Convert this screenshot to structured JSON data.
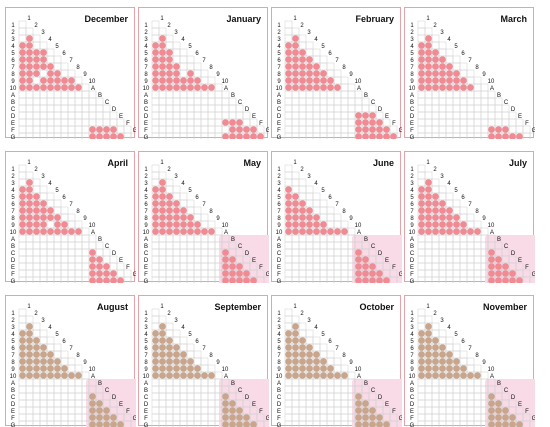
{
  "colors": {
    "pink": "#f28a93",
    "tan": "#c9a58c",
    "shade": "#f8dbe7",
    "grid": "#cfcfcf",
    "border": "#e3a3a8"
  },
  "chart_data": {
    "type": "heatmap",
    "row_labels": [
      "1",
      "2",
      "3",
      "4",
      "5",
      "6",
      "7",
      "8",
      "9",
      "10",
      "A",
      "B",
      "C",
      "D",
      "E",
      "F",
      "G"
    ],
    "col_labels": [
      "1",
      "2",
      "3",
      "4",
      "5",
      "6",
      "7",
      "8",
      "9",
      "10",
      "A",
      "B",
      "C",
      "D",
      "E",
      "F",
      "G"
    ],
    "panels": [
      {
        "month": "December",
        "shade": false,
        "color": "pink",
        "upper": [
          [
            2
          ],
          [
            1,
            2
          ],
          [
            1,
            2,
            3,
            4
          ],
          [
            1,
            2,
            3,
            4
          ],
          [
            1,
            2,
            3,
            4,
            5
          ],
          [
            1,
            2,
            3,
            5,
            6
          ],
          [
            1,
            2,
            4,
            5,
            6,
            7,
            8
          ],
          [
            1,
            2,
            3,
            4,
            5,
            6,
            7,
            8,
            9
          ]
        ],
        "lower": [
          [
            1,
            2,
            3,
            4
          ],
          [
            1,
            2,
            3,
            4,
            5
          ]
        ]
      },
      {
        "month": "January",
        "shade": false,
        "color": "pink",
        "upper": [
          [
            2
          ],
          [
            1,
            2
          ],
          [
            1,
            2,
            3
          ],
          [
            1,
            2,
            3
          ],
          [
            1,
            2,
            3,
            4
          ],
          [
            1,
            2,
            3,
            4,
            6
          ],
          [
            1,
            2,
            3,
            4,
            5,
            6,
            7
          ],
          [
            1,
            2,
            3,
            4,
            5,
            6,
            7,
            8,
            9
          ]
        ],
        "lower": [
          [
            1,
            2,
            3
          ],
          [
            2,
            3,
            4,
            5
          ],
          [
            1,
            2,
            3,
            4,
            5,
            6
          ]
        ]
      },
      {
        "month": "February",
        "shade": false,
        "color": "pink",
        "upper": [
          [
            2
          ],
          [
            1,
            2
          ],
          [
            1,
            2,
            3
          ],
          [
            1,
            2,
            3,
            4
          ],
          [
            1,
            2,
            3,
            4,
            5
          ],
          [
            1,
            2,
            3,
            4,
            5,
            6
          ],
          [
            1,
            2,
            3,
            4,
            5,
            6,
            7
          ],
          [
            1,
            2,
            3,
            4,
            5,
            6,
            7,
            8
          ]
        ],
        "lower": [
          [
            1,
            2,
            3
          ],
          [
            1,
            2,
            3,
            4
          ],
          [
            1,
            2,
            3,
            4,
            5
          ],
          [
            1,
            2,
            3,
            4,
            5,
            6
          ]
        ]
      },
      {
        "month": "March",
        "shade": false,
        "color": "pink",
        "upper": [
          [
            2
          ],
          [
            1,
            2
          ],
          [
            1,
            2,
            3
          ],
          [
            1,
            2,
            3,
            4
          ],
          [
            1,
            2,
            3,
            4,
            5
          ],
          [
            1,
            2,
            3,
            4,
            5,
            6
          ],
          [
            1,
            2,
            3,
            4,
            5,
            6,
            7
          ],
          [
            1,
            2,
            3,
            4,
            5,
            6,
            7,
            8
          ]
        ],
        "lower": [
          [
            1,
            2,
            3
          ],
          [
            1,
            2,
            3,
            4,
            5
          ]
        ]
      },
      {
        "month": "April",
        "shade": false,
        "color": "pink",
        "upper": [
          [
            2
          ],
          [
            1,
            2
          ],
          [
            1,
            2,
            3
          ],
          [
            1,
            2,
            3,
            4
          ],
          [
            1,
            2,
            3,
            4,
            5
          ],
          [
            1,
            2,
            3,
            4,
            5,
            6
          ],
          [
            1,
            2,
            3,
            4,
            6,
            7
          ],
          [
            1,
            2,
            3,
            4,
            5,
            6,
            7,
            8,
            9
          ]
        ],
        "lower": [
          [
            1
          ],
          [
            1,
            2
          ],
          [
            1,
            2,
            3
          ],
          [
            1,
            2,
            3,
            4
          ],
          [
            1,
            2,
            3,
            4,
            5
          ]
        ]
      },
      {
        "month": "May",
        "shade": true,
        "color": "pink",
        "upper": [
          [
            2
          ],
          [
            1,
            2
          ],
          [
            1,
            2,
            3
          ],
          [
            1,
            2,
            3,
            4
          ],
          [
            1,
            2,
            3,
            4,
            5
          ],
          [
            1,
            2,
            3,
            4,
            5,
            6
          ],
          [
            1,
            2,
            3,
            4,
            5,
            6,
            7
          ],
          [
            1,
            2,
            3,
            4,
            5,
            6,
            7,
            8,
            9
          ]
        ],
        "lower": [
          [
            1
          ],
          [
            1,
            2
          ],
          [
            1,
            2,
            3
          ],
          [
            1,
            2,
            3,
            4
          ],
          [
            1,
            2,
            3,
            4,
            5
          ]
        ]
      },
      {
        "month": "June",
        "shade": true,
        "color": "pink",
        "upper": [
          [],
          [
            1
          ],
          [
            1,
            2
          ],
          [
            1,
            2,
            3
          ],
          [
            1,
            2,
            3,
            4
          ],
          [
            1,
            2,
            3,
            4,
            5
          ],
          [
            1,
            2,
            3,
            4,
            5,
            6
          ],
          [
            1,
            2,
            3,
            4,
            5,
            6,
            7,
            8,
            9
          ]
        ],
        "lower": [
          [
            1
          ],
          [
            1,
            2
          ],
          [
            1,
            2,
            3
          ],
          [
            1,
            2,
            3,
            4
          ],
          [
            1,
            2,
            3,
            4,
            5
          ]
        ]
      },
      {
        "month": "July",
        "shade": true,
        "color": "pink",
        "upper": [
          [
            2
          ],
          [
            1,
            2
          ],
          [
            1,
            2,
            3
          ],
          [
            1,
            2,
            3,
            4
          ],
          [
            1,
            2,
            3,
            4,
            5
          ],
          [
            1,
            2,
            3,
            4,
            5,
            6
          ],
          [
            1,
            2,
            3,
            4,
            5,
            6,
            7
          ],
          [
            1,
            2,
            3,
            4,
            5,
            6,
            7,
            8,
            9
          ]
        ],
        "lower": [
          [
            1
          ],
          [
            1,
            2
          ],
          [
            1,
            2,
            3
          ],
          [
            1,
            2,
            3,
            4
          ],
          [
            1,
            2,
            3,
            4,
            5
          ]
        ]
      },
      {
        "month": "August",
        "shade": true,
        "color": "tan",
        "upper": [
          [
            2
          ],
          [
            1,
            2
          ],
          [
            1,
            2,
            3
          ],
          [
            1,
            2,
            3,
            4
          ],
          [
            1,
            2,
            3,
            4,
            5
          ],
          [
            1,
            2,
            3,
            4,
            5,
            6
          ],
          [
            1,
            2,
            3,
            4,
            5,
            6,
            7
          ],
          [
            1,
            2,
            3,
            4,
            5,
            6,
            7,
            8,
            9
          ]
        ],
        "lower": [
          [
            1
          ],
          [
            1,
            2
          ],
          [
            1,
            2,
            3
          ],
          [
            1,
            2,
            3,
            4
          ],
          [
            1,
            2,
            3,
            4,
            5
          ]
        ]
      },
      {
        "month": "September",
        "shade": true,
        "color": "tan",
        "upper": [
          [
            2
          ],
          [
            1,
            2
          ],
          [
            1,
            2,
            3
          ],
          [
            1,
            2,
            3,
            4
          ],
          [
            1,
            2,
            3,
            4,
            5
          ],
          [
            1,
            2,
            3,
            4,
            5,
            6
          ],
          [
            1,
            2,
            3,
            4,
            5,
            6,
            7
          ],
          [
            1,
            2,
            3,
            4,
            5,
            6,
            7,
            8,
            9
          ]
        ],
        "lower": [
          [
            1
          ],
          [
            1,
            2
          ],
          [
            1,
            2,
            3
          ],
          [
            1,
            2,
            3,
            4
          ],
          [
            1,
            2,
            3,
            4,
            5
          ]
        ]
      },
      {
        "month": "October",
        "shade": true,
        "color": "tan",
        "upper": [
          [
            2
          ],
          [
            1,
            2
          ],
          [
            1,
            2,
            3
          ],
          [
            1,
            2,
            3,
            4
          ],
          [
            1,
            2,
            3,
            4,
            5
          ],
          [
            1,
            2,
            3,
            4,
            5,
            6
          ],
          [
            1,
            2,
            3,
            4,
            5,
            6,
            7
          ],
          [
            1,
            2,
            3,
            4,
            5,
            6,
            7,
            8,
            9
          ]
        ],
        "lower": [
          [
            1
          ],
          [
            1,
            2
          ],
          [
            1,
            2,
            3
          ],
          [
            1,
            2,
            3,
            4
          ],
          [
            1,
            2,
            3,
            4,
            5
          ]
        ]
      },
      {
        "month": "November",
        "shade": true,
        "color": "tan",
        "upper": [
          [
            2
          ],
          [
            1,
            2
          ],
          [
            1,
            2,
            3
          ],
          [
            1,
            2,
            3,
            4
          ],
          [
            1,
            2,
            3,
            4,
            5
          ],
          [
            1,
            2,
            3,
            4,
            5,
            6
          ],
          [
            1,
            2,
            3,
            4,
            5,
            6,
            7
          ],
          [
            1,
            2,
            3,
            4,
            5,
            6,
            7,
            8,
            9
          ]
        ],
        "lower": [
          [
            1
          ],
          [
            1,
            2
          ],
          [
            1,
            2,
            3
          ],
          [
            1,
            2,
            3,
            4
          ],
          [
            1,
            2,
            3,
            4,
            5
          ]
        ]
      }
    ]
  }
}
